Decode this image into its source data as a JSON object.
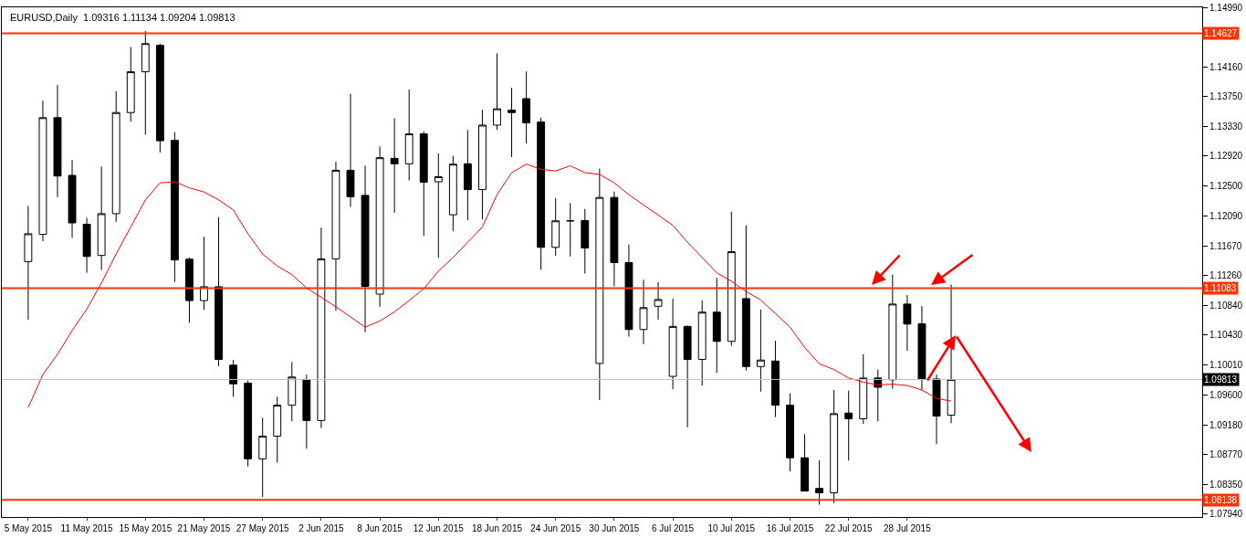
{
  "chart_data": {
    "type": "candlestick",
    "title": "EURUSD,Daily  1.09316 1.11134 1.09204 1.09813",
    "categories": [
      "5 May 2015",
      null,
      null,
      null,
      "11 May 2015",
      null,
      null,
      null,
      "15 May 2015",
      null,
      null,
      null,
      "21 May 2015",
      null,
      null,
      null,
      "27 May 2015",
      null,
      null,
      null,
      "2 Jun 2015",
      null,
      null,
      null,
      "8 Jun 2015",
      null,
      null,
      null,
      "12 Jun 2015",
      null,
      null,
      null,
      "18 Jun 2015",
      null,
      null,
      null,
      "24 Jun 2015",
      null,
      null,
      null,
      "30 Jun 2015",
      null,
      null,
      null,
      "6 Jul 2015",
      null,
      null,
      null,
      "10 Jul 2015",
      null,
      null,
      null,
      "16 Jul 2015",
      null,
      null,
      null,
      "22 Jul 2015",
      null,
      null,
      null,
      "28 Jul 2015",
      null,
      null,
      null
    ],
    "ohlc": [
      [
        1.11453,
        1.12227,
        1.10645,
        1.1184
      ],
      [
        1.11831,
        1.13691,
        1.11736,
        1.13455
      ],
      [
        1.13455,
        1.13909,
        1.1235,
        1.12643
      ],
      [
        1.12652,
        1.12865,
        1.11783,
        1.11991
      ],
      [
        1.11972,
        1.12062,
        1.11297,
        1.11524
      ],
      [
        1.11538,
        1.12775,
        1.11335,
        1.12119
      ],
      [
        1.12119,
        1.13824,
        1.12005,
        1.13526
      ],
      [
        1.13526,
        1.14438,
        1.13399,
        1.14093
      ],
      [
        1.14093,
        1.1466,
        1.13219,
        1.14485
      ],
      [
        1.14461,
        1.14485,
        1.12969,
        1.13134
      ],
      [
        1.13139,
        1.13252,
        1.11169,
        1.11476
      ],
      [
        1.11486,
        1.11509,
        1.10603,
        1.1091
      ],
      [
        1.1091,
        1.11797,
        1.10782,
        1.11103
      ],
      [
        1.11103,
        1.12071,
        1.09998,
        1.10092
      ],
      [
        1.10012,
        1.10083,
        1.09573,
        1.09752
      ],
      [
        1.09762,
        1.098,
        1.08605,
        1.08709
      ],
      [
        1.08709,
        1.0928,
        1.0818,
        1.09025
      ],
      [
        1.09025,
        1.09573,
        1.08657,
        1.09455
      ],
      [
        1.09455,
        1.10055,
        1.09233,
        1.09847
      ],
      [
        1.09809,
        1.0988,
        1.0885,
        1.09242
      ],
      [
        1.09242,
        1.11925,
        1.09139,
        1.11491
      ],
      [
        1.11491,
        1.12841,
        1.10768,
        1.12723
      ],
      [
        1.12723,
        1.13786,
        1.12213,
        1.12355
      ],
      [
        1.12374,
        1.12789,
        1.1047,
        1.11108
      ],
      [
        1.11,
        1.13054,
        1.10825,
        1.12898
      ],
      [
        1.12889,
        1.13446,
        1.12133,
        1.12813
      ],
      [
        1.12813,
        1.13847,
        1.12582,
        1.13229
      ],
      [
        1.13229,
        1.13266,
        1.11812,
        1.12558
      ],
      [
        1.12563,
        1.12959,
        1.11505,
        1.12633
      ],
      [
        1.12104,
        1.12926,
        1.11878,
        1.12808
      ],
      [
        1.12813,
        1.13281,
        1.12029,
        1.12454
      ],
      [
        1.12454,
        1.13564,
        1.12038,
        1.13351
      ],
      [
        1.13351,
        1.14348,
        1.13285,
        1.13578
      ],
      [
        1.13559,
        1.13871,
        1.12907,
        1.13526
      ],
      [
        1.1372,
        1.14098,
        1.13096,
        1.13384
      ],
      [
        1.13394,
        1.13455,
        1.11339,
        1.11651
      ],
      [
        1.11651,
        1.12336,
        1.11533,
        1.1202
      ],
      [
        1.1202,
        1.12265,
        1.11524,
        1.1202
      ],
      [
        1.12024,
        1.12185,
        1.11287,
        1.11642
      ],
      [
        1.10036,
        1.12747,
        1.09526,
        1.12345
      ],
      [
        1.12345,
        1.12426,
        1.11108,
        1.11439
      ],
      [
        1.11439,
        1.11689,
        1.10409,
        1.10508
      ],
      [
        1.10508,
        1.11202,
        1.10305,
        1.10812
      ],
      [
        1.10831,
        1.11165,
        1.10645,
        1.10925
      ],
      [
        1.09856,
        1.10938,
        1.09677,
        1.10551
      ],
      [
        1.10551,
        1.10565,
        1.09148,
        1.10092
      ],
      [
        1.10092,
        1.10914,
        1.09729,
        1.10749
      ],
      [
        1.10749,
        1.11226,
        1.09904,
        1.10343
      ],
      [
        1.10343,
        1.12147,
        1.10281,
        1.1159
      ],
      [
        1.10938,
        1.11958,
        1.09937,
        1.09993
      ],
      [
        1.09993,
        1.10787,
        1.09644,
        1.10083
      ],
      [
        1.10069,
        1.10352,
        1.0929,
        1.09455
      ],
      [
        1.09455,
        1.0962,
        1.08534,
        1.08723
      ],
      [
        1.08723,
        1.09053,
        1.0826,
        1.0826
      ],
      [
        1.08298,
        1.0869,
        1.08071,
        1.08236
      ],
      [
        1.08236,
        1.09667,
        1.08095,
        1.09337
      ],
      [
        1.09346,
        1.09658,
        1.08685,
        1.09266
      ],
      [
        1.09266,
        1.10163,
        1.09195,
        1.09833
      ],
      [
        1.09833,
        1.09951,
        1.09233,
        1.09705
      ],
      [
        1.09809,
        1.11273,
        1.09682,
        1.10862
      ],
      [
        1.10862,
        1.1099,
        1.10211,
        1.10584
      ],
      [
        1.10588,
        1.10834,
        1.09658,
        1.09819
      ],
      [
        1.09819,
        1.0988,
        1.08912,
        1.09304
      ],
      [
        1.09316,
        1.11134,
        1.09204,
        1.09813
      ]
    ],
    "series": [
      {
        "type": "line",
        "color": "#ff0000",
        "values": [
          1.09422,
          1.0988,
          1.10163,
          1.10494,
          1.10791,
          1.11155,
          1.11557,
          1.11934,
          1.12312,
          1.12548,
          1.12563,
          1.12478,
          1.12421,
          1.12312,
          1.12171,
          1.1184,
          1.11557,
          1.11391,
          1.11273,
          1.11084,
          1.10957,
          1.10825,
          1.10683,
          1.10541,
          1.10626,
          1.10754,
          1.1091,
          1.11075,
          1.1132,
          1.11509,
          1.11722,
          1.11934,
          1.12383,
          1.1269,
          1.12808,
          1.12737,
          1.12714,
          1.12785,
          1.1269,
          1.12666,
          1.12548,
          1.12383,
          1.12241,
          1.121,
          1.11958,
          1.11722,
          1.11509,
          1.11297,
          1.11179,
          1.11037,
          1.10919,
          1.1073,
          1.10541,
          1.10258,
          1.10031,
          1.09951,
          1.09833,
          1.09776,
          1.09738,
          1.09748,
          1.09729,
          1.09667,
          1.09549,
          1.09512
        ]
      }
    ],
    "ylim": [
      1.079,
      1.1499
    ],
    "yticks": [
      {
        "value": 1.1499,
        "label": "1.14990"
      },
      {
        "value": 1.1416,
        "label": "1.14160"
      },
      {
        "value": 1.1375,
        "label": "1.13750"
      },
      {
        "value": 1.1333,
        "label": "1.13330"
      },
      {
        "value": 1.1292,
        "label": "1.12920"
      },
      {
        "value": 1.125,
        "label": "1.12500"
      },
      {
        "value": 1.1209,
        "label": "1.12090"
      },
      {
        "value": 1.1167,
        "label": "1.11670"
      },
      {
        "value": 1.1126,
        "label": "1.11260"
      },
      {
        "value": 1.1084,
        "label": "1.10840"
      },
      {
        "value": 1.1043,
        "label": "1.10430"
      },
      {
        "value": 1.1001,
        "label": "1.10010"
      },
      {
        "value": 1.096,
        "label": "1.09600"
      },
      {
        "value": 1.0918,
        "label": "1.09180"
      },
      {
        "value": 1.0877,
        "label": "1.08770"
      },
      {
        "value": 1.0835,
        "label": "1.08350"
      },
      {
        "value": 1.0794,
        "label": "1.07940"
      }
    ],
    "ref_lines": [
      {
        "axis": "y",
        "value": 1.14627,
        "label": "1.14627",
        "color": "#ff3300"
      },
      {
        "axis": "y",
        "value": 1.11083,
        "label": "1.11083",
        "color": "#ff3300"
      },
      {
        "axis": "y",
        "value": 1.08138,
        "label": "1.08138",
        "color": "#ff3300"
      },
      {
        "axis": "y",
        "value": 1.09813,
        "label": "1.09813",
        "color": "#c0c0c0"
      }
    ]
  }
}
